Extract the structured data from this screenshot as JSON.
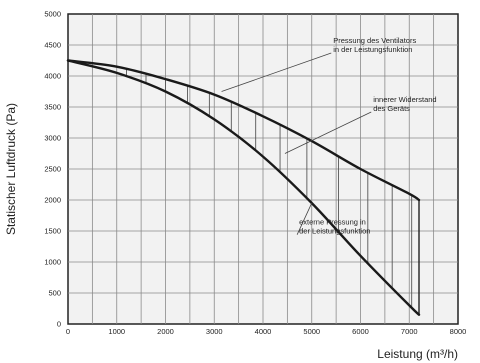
{
  "chart_data": {
    "type": "line",
    "xlabel": "Leistung (m³/h)",
    "ylabel": "Statischer Luftdruck (Pa)",
    "xlim": [
      0,
      8000
    ],
    "ylim": [
      0,
      5000
    ],
    "x_ticks": [
      "0",
      "1000",
      "2000",
      "3000",
      "4000",
      "5000",
      "6000",
      "7000",
      "8000"
    ],
    "y_ticks": [
      "0",
      "500",
      "1000",
      "1500",
      "2000",
      "2500",
      "3000",
      "3500",
      "4000",
      "4500",
      "5000"
    ],
    "grid": true,
    "series": [
      {
        "x": [
          0,
          1000,
          2000,
          3000,
          4000,
          5000,
          6000,
          7000,
          7200
        ],
        "values": [
          4250,
          4150,
          3950,
          3700,
          3350,
          2950,
          2500,
          2100,
          2000
        ]
      },
      {
        "x": [
          0,
          1000,
          2000,
          3000,
          4000,
          5000,
          6000,
          7000,
          7200
        ],
        "values": [
          4250,
          4050,
          3750,
          3300,
          2700,
          1950,
          1100,
          300,
          150
        ]
      }
    ],
    "hatch_x": [
      1200,
      1600,
      2000,
      2450,
      2900,
      3350,
      3850,
      4350,
      4900,
      5550,
      6150,
      6650,
      7050
    ],
    "annotations": [
      {
        "text": [
          "Pressung des Ventilators",
          "in der Leistungsfunktion"
        ],
        "target": [
          3150,
          3750
        ],
        "anchor": [
          5400,
          4370
        ]
      },
      {
        "text": [
          "innerer Widerstand",
          "des Geräts"
        ],
        "target": [
          4450,
          2750
        ],
        "anchor": [
          6220,
          3420
        ]
      },
      {
        "text": [
          "externe Pressung in",
          "der Leistungsfunktion"
        ],
        "target": [
          5000,
          1950
        ],
        "anchor": [
          4700,
          1440
        ]
      }
    ]
  }
}
